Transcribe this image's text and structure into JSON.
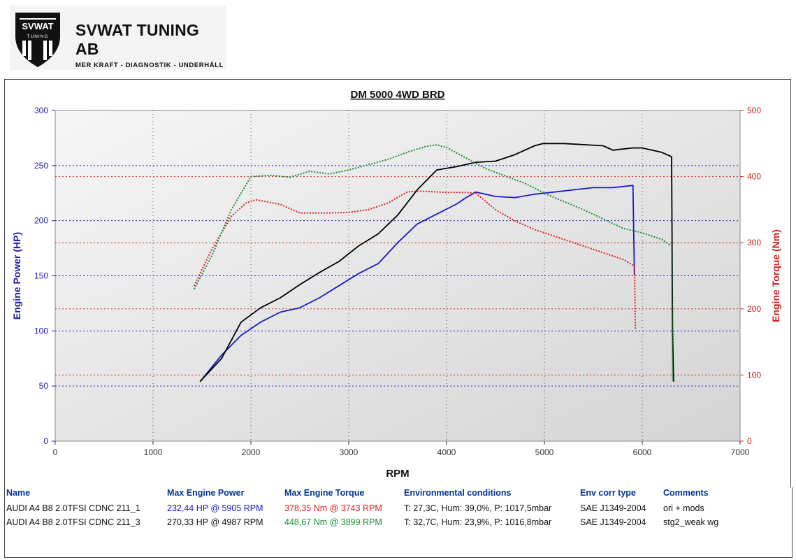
{
  "logo": {
    "badge_text": "SVWAT",
    "badge_sub": "TUNING",
    "company": "SVWAT TUNING AB",
    "tagline": "MER KRAFT - DIAGNOSTIK - UNDERHÅLL"
  },
  "colors": {
    "run1_power": "#1a1acc",
    "run1_torque": "#e02020",
    "run2_power": "#000000",
    "run2_torque": "#1a8c3a",
    "left_axis": "#2020aa",
    "right_axis": "#d02020"
  },
  "chart_data": {
    "type": "line",
    "title": "DM 5000 4WD BRD",
    "xlabel": "RPM",
    "ylabel_left": "Engine Power (HP)",
    "ylabel_right": "Engine Torque (Nm)",
    "xlim": [
      0,
      7000
    ],
    "ylim_left": [
      0,
      300
    ],
    "ylim_right": [
      0,
      500
    ],
    "x_ticks": [
      "0",
      "1000",
      "2000",
      "3000",
      "4000",
      "5000",
      "6000",
      "7000"
    ],
    "left_ticks": [
      "0",
      "50",
      "100",
      "150",
      "200",
      "250",
      "300"
    ],
    "right_ticks": [
      "0",
      "100",
      "200",
      "300",
      "400",
      "500"
    ],
    "grid": true,
    "series": [
      {
        "axis": "left",
        "style": "solid",
        "points": [
          [
            1480,
            54
          ],
          [
            1700,
            78
          ],
          [
            1900,
            96
          ],
          [
            2100,
            108
          ],
          [
            2300,
            117
          ],
          [
            2500,
            121
          ],
          [
            2700,
            130
          ],
          [
            2900,
            141
          ],
          [
            3100,
            152
          ],
          [
            3300,
            161
          ],
          [
            3500,
            180
          ],
          [
            3700,
            197
          ],
          [
            3900,
            206
          ],
          [
            4100,
            215
          ],
          [
            4200,
            221
          ],
          [
            4300,
            226
          ],
          [
            4500,
            222
          ],
          [
            4700,
            221
          ],
          [
            4900,
            224
          ],
          [
            5100,
            226
          ],
          [
            5300,
            228
          ],
          [
            5500,
            230
          ],
          [
            5700,
            230
          ],
          [
            5905,
            232
          ],
          [
            5920,
            150
          ]
        ]
      },
      {
        "axis": "right",
        "style": "dotted",
        "points": [
          [
            1420,
            235
          ],
          [
            1600,
            290
          ],
          [
            1800,
            340
          ],
          [
            1950,
            360
          ],
          [
            2050,
            365
          ],
          [
            2300,
            358
          ],
          [
            2500,
            345
          ],
          [
            2800,
            345
          ],
          [
            3000,
            346
          ],
          [
            3200,
            350
          ],
          [
            3400,
            360
          ],
          [
            3600,
            377
          ],
          [
            3743,
            378
          ],
          [
            4000,
            376
          ],
          [
            4200,
            376
          ],
          [
            4300,
            375
          ],
          [
            4500,
            350
          ],
          [
            4700,
            333
          ],
          [
            4900,
            320
          ],
          [
            5100,
            310
          ],
          [
            5300,
            300
          ],
          [
            5600,
            285
          ],
          [
            5800,
            275
          ],
          [
            5920,
            265
          ],
          [
            5930,
            170
          ]
        ]
      },
      {
        "axis": "left",
        "style": "solid",
        "points": [
          [
            1480,
            54
          ],
          [
            1700,
            75
          ],
          [
            1900,
            108
          ],
          [
            2100,
            121
          ],
          [
            2300,
            130
          ],
          [
            2500,
            142
          ],
          [
            2700,
            153
          ],
          [
            2900,
            163
          ],
          [
            3100,
            177
          ],
          [
            3300,
            188
          ],
          [
            3500,
            205
          ],
          [
            3700,
            228
          ],
          [
            3900,
            246
          ],
          [
            4100,
            249
          ],
          [
            4300,
            253
          ],
          [
            4500,
            254
          ],
          [
            4700,
            260
          ],
          [
            4900,
            268
          ],
          [
            4987,
            270
          ],
          [
            5200,
            270
          ],
          [
            5400,
            269
          ],
          [
            5600,
            268
          ],
          [
            5700,
            264
          ],
          [
            5900,
            266
          ],
          [
            6000,
            266
          ],
          [
            6200,
            262
          ],
          [
            6300,
            258
          ],
          [
            6310,
            100
          ],
          [
            6320,
            54
          ]
        ]
      },
      {
        "axis": "right",
        "style": "dotted",
        "points": [
          [
            1420,
            230
          ],
          [
            1600,
            280
          ],
          [
            1800,
            350
          ],
          [
            2000,
            400
          ],
          [
            2200,
            402
          ],
          [
            2400,
            399
          ],
          [
            2600,
            408
          ],
          [
            2800,
            404
          ],
          [
            3000,
            410
          ],
          [
            3200,
            418
          ],
          [
            3400,
            426
          ],
          [
            3600,
            437
          ],
          [
            3800,
            446
          ],
          [
            3899,
            448
          ],
          [
            4000,
            444
          ],
          [
            4200,
            428
          ],
          [
            4400,
            412
          ],
          [
            4600,
            401
          ],
          [
            4800,
            390
          ],
          [
            5000,
            375
          ],
          [
            5200,
            362
          ],
          [
            5400,
            350
          ],
          [
            5600,
            336
          ],
          [
            5800,
            322
          ],
          [
            6000,
            315
          ],
          [
            6200,
            305
          ],
          [
            6300,
            295
          ],
          [
            6310,
            90
          ]
        ]
      }
    ]
  },
  "legend": {
    "headers": [
      "Name",
      "Max Engine Power",
      "Max Engine Torque",
      "Environmental conditions",
      "Env corr type",
      "Comments"
    ],
    "rows": [
      {
        "name": "AUDI A4 B8 2.0TFSI CDNC 211_1",
        "power": "232,44 HP @ 5905 RPM",
        "torque": "378,35 Nm @ 3743 RPM",
        "env": "T: 27,3C, Hum: 39,0%, P: 1017,5mbar",
        "corr": "SAE J1349-2004",
        "comment": "ori + mods"
      },
      {
        "name": "AUDI A4 B8 2.0TFSI CDNC 211_3",
        "power": "270,33 HP @ 4987 RPM",
        "torque": "448,67 Nm @ 3899 RPM",
        "env": "T: 32,7C, Hum: 23,9%, P: 1016,8mbar",
        "corr": "SAE J1349-2004",
        "comment": "stg2_weak wg"
      }
    ]
  }
}
